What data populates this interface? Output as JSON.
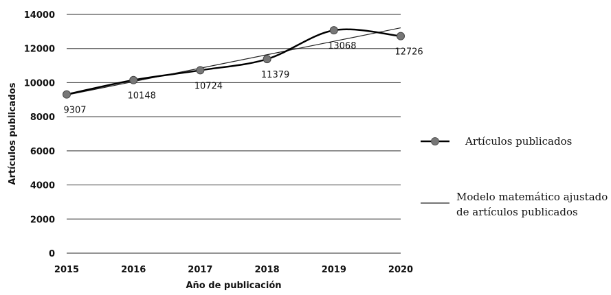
{
  "chart_data": {
    "type": "line",
    "x": [
      2015,
      2016,
      2017,
      2018,
      2019,
      2020
    ],
    "xlabel": "Año de publicación",
    "ylabel": "Artículos publicados",
    "ylim": [
      0,
      14000
    ],
    "yticks": [
      0,
      2000,
      4000,
      6000,
      8000,
      10000,
      12000,
      14000
    ],
    "grid": true,
    "legend_position": "right",
    "series": [
      {
        "name": "Artículos publicados",
        "values": [
          9307,
          10148,
          10724,
          11379,
          13068,
          12726
        ],
        "labels": [
          "9307",
          "10148",
          "10724",
          "11379",
          "13068",
          "12726"
        ],
        "style": "smooth-line-with-markers",
        "color": "#000000",
        "marker_color": "#777777"
      },
      {
        "name": "Modelo matemático ajustado de artículos publicados",
        "name_lines": [
          "Modelo matemático ajustado",
          "de artículos publicados"
        ],
        "values": [
          9272,
          10060,
          10848,
          11636,
          12424,
          13212
        ],
        "style": "thin-line",
        "color": "#222222"
      }
    ]
  }
}
